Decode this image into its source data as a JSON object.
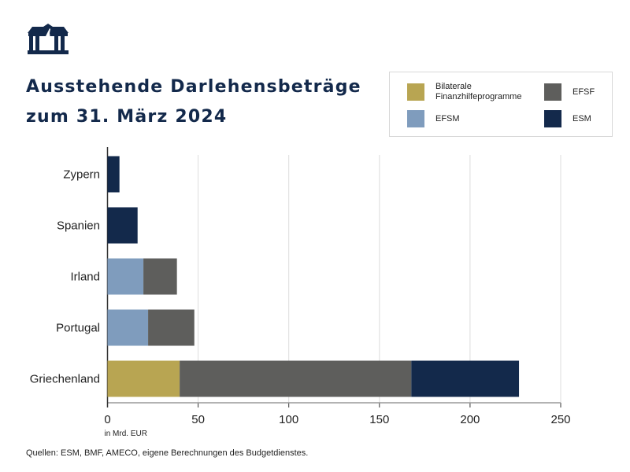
{
  "title_lines": [
    "Ausstehende Darlehensbeträge",
    "zum 31. März 2024"
  ],
  "source": "Quellen: ESM, BMF, AMECO, eigene Berechnungen des Budgetdienstes.",
  "chart_data": {
    "type": "bar",
    "orientation": "horizontal",
    "stacked": true,
    "title": "Ausstehende Darlehensbeträge zum 31. März 2024",
    "xlabel": "in Mrd. EUR",
    "ylabel": "",
    "xlim": [
      0,
      250
    ],
    "xticks": [
      0,
      50,
      100,
      150,
      200,
      250
    ],
    "grid": "vertical",
    "legend_position": "top-right",
    "categories": [
      "Zypern",
      "Spanien",
      "Irland",
      "Portugal",
      "Griechenland"
    ],
    "series": [
      {
        "name": "Bilaterale Finanzhilfeprogramme",
        "color": "#b8a552",
        "values": [
          0,
          0,
          0,
          0,
          39.8
        ]
      },
      {
        "name": "EFSM",
        "color": "#7f9cbd",
        "values": [
          0,
          0,
          19.8,
          22.4,
          0
        ]
      },
      {
        "name": "EFSF",
        "color": "#5e5e5c",
        "values": [
          0,
          0,
          18.5,
          25.5,
          127.8
        ]
      },
      {
        "name": "ESM",
        "color": "#13294b",
        "values": [
          6.6,
          16.6,
          0,
          0,
          59.4
        ]
      }
    ]
  },
  "legend": [
    {
      "label": "Bilaterale\nFinanzhilfeprogramme",
      "series": 0
    },
    {
      "label": "EFSF",
      "series": 2
    },
    {
      "label": "EFSM",
      "series": 1
    },
    {
      "label": "ESM",
      "series": 3
    }
  ]
}
